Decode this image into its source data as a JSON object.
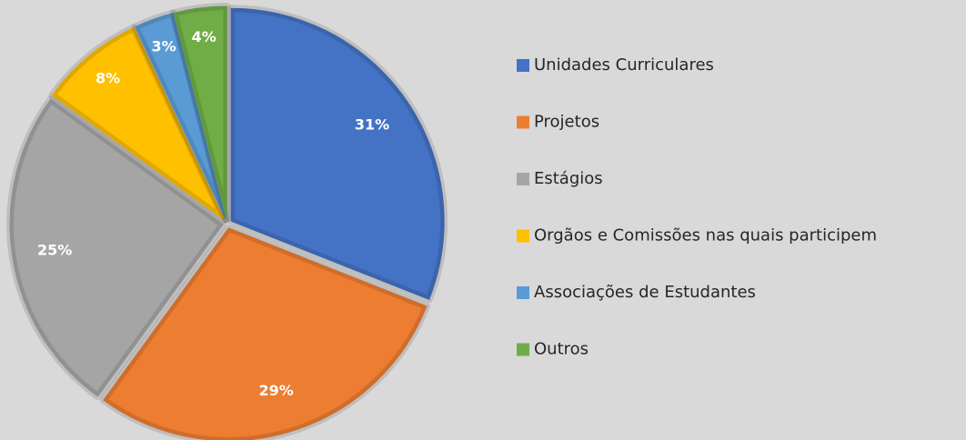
{
  "chart_data": {
    "type": "pie",
    "categories": [
      "Unidades Curriculares",
      "Projetos",
      "Estágios",
      "Orgãos e Comissões nas quais participem",
      "Associações de Estudantes",
      "Outros"
    ],
    "values": [
      31,
      29,
      25,
      8,
      3,
      4
    ],
    "value_labels": [
      "31%",
      "29%",
      "25%",
      "8%",
      "3%",
      "4%"
    ],
    "colors": [
      "#4472c4",
      "#ed7d31",
      "#a5a5a5",
      "#ffc000",
      "#5b9bd5",
      "#70ad47"
    ],
    "legend": "right"
  }
}
